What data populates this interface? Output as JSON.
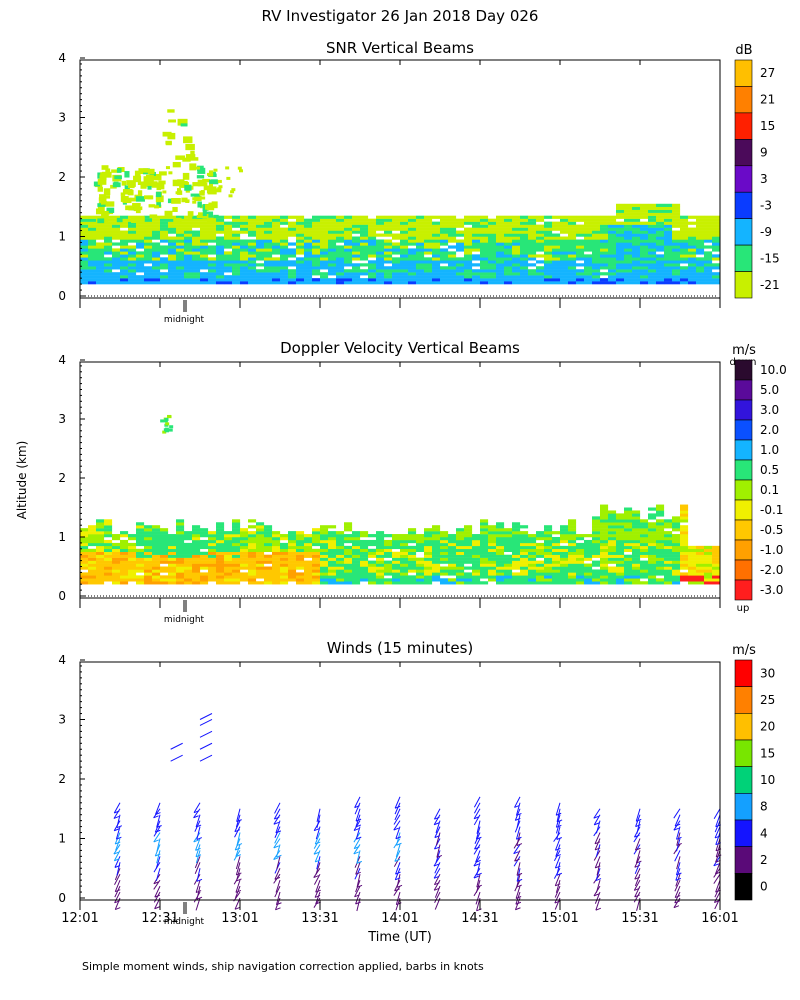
{
  "page": {
    "title": "RV Investigator  26 Jan 2018 Day 026",
    "footer": "Simple moment winds, ship navigation correction applied, barbs in knots",
    "y_axis_label": "Altitude (km)",
    "x_axis_label": "Time (UT)",
    "midnight_label": "midnight"
  },
  "chart_data": [
    {
      "type": "heatmap",
      "title": "SNR Vertical Beams",
      "ylabel": "Altitude (km)",
      "y_ticks": [
        "0",
        "1",
        "2",
        "3",
        "4"
      ],
      "ylim": [
        0,
        4
      ],
      "xlim": [
        "12:01",
        "16:01"
      ],
      "colorbar": {
        "unit": "dB",
        "labels": [
          "27",
          "21",
          "15",
          "9",
          "3",
          "-3",
          "-9",
          "-15",
          "-21"
        ],
        "colors": [
          "#ffbf00",
          "#ff8000",
          "#ff2000",
          "#4b0a5a",
          "#6a0ac8",
          "#0a3cff",
          "#14b4ff",
          "#28e678",
          "#c8f000"
        ]
      },
      "layers": [
        {
          "from_km": 0.2,
          "to_km": 0.5,
          "snr_db": -6,
          "color": "#14b4ff"
        },
        {
          "from_km": 0.5,
          "to_km": 1.0,
          "snr_db": -15,
          "color": "#28e678"
        },
        {
          "from_km": 1.0,
          "to_km": 1.35,
          "snr_db": -21,
          "color": "#c8f000"
        },
        {
          "from_km": 1.3,
          "to_km": 3.2,
          "snr_db": -21,
          "color": "#c8f000",
          "note": "sparse patches 12:12-12:46"
        }
      ]
    },
    {
      "type": "heatmap",
      "title": "Doppler Velocity Vertical Beams",
      "ylabel": "Altitude (km)",
      "y_ticks": [
        "0",
        "1",
        "2",
        "3",
        "4"
      ],
      "ylim": [
        0,
        4
      ],
      "xlim": [
        "12:01",
        "16:01"
      ],
      "colorbar": {
        "unit": "m/s",
        "top_label": "down",
        "bottom_label": "up",
        "labels": [
          "10.0",
          "5.0",
          "3.0",
          "2.0",
          "1.0",
          "0.5",
          "0.1",
          "-0.1",
          "-0.5",
          "-1.0",
          "-2.0",
          "-3.0"
        ],
        "colors": [
          "#2a0a2e",
          "#5a0a9a",
          "#3214dc",
          "#0a50ff",
          "#14b4ff",
          "#28e678",
          "#a0f000",
          "#f0f000",
          "#ffc800",
          "#ffa000",
          "#ff7000",
          "#ff1e1e"
        ]
      },
      "layers": [
        {
          "from_km": 0.2,
          "to_km": 0.9,
          "velocity_ms": -0.5,
          "color": "#ffc800",
          "note": "12:01-13:06"
        },
        {
          "from_km": 0.2,
          "to_km": 1.0,
          "velocity_ms": 0.5,
          "color": "#28e678",
          "note": "13:06-15:51"
        },
        {
          "from_km": 0.9,
          "to_km": 1.4,
          "velocity_ms": 0.1,
          "color": "#a0f000"
        }
      ]
    },
    {
      "type": "scatter",
      "title": "Winds (15 minutes)",
      "ylabel": "Altitude (km)",
      "xlabel": "Time (UT)",
      "y_ticks": [
        "0",
        "1",
        "2",
        "3",
        "4"
      ],
      "ylim": [
        0,
        4
      ],
      "x_ticks": [
        "12:01",
        "12:31",
        "13:01",
        "13:31",
        "14:01",
        "14:31",
        "15:01",
        "15:31",
        "16:01"
      ],
      "colorbar": {
        "unit": "m/s",
        "labels": [
          "30",
          "25",
          "20",
          "15",
          "10",
          "8",
          "4",
          "2",
          "0"
        ],
        "colors": [
          "#ff0000",
          "#ff8000",
          "#ffbf00",
          "#78e600",
          "#00d278",
          "#14a0ff",
          "#1414ff",
          "#5a0a78",
          "#000000"
        ]
      },
      "profile_times_min": [
        15,
        30,
        45,
        60,
        75,
        90,
        105,
        120,
        135,
        150,
        165,
        180,
        195,
        210,
        225,
        240
      ],
      "barbs": "wind profiles at 15-minute intervals, 0-1.7 km, speeds mostly 2-8 m/s"
    }
  ]
}
